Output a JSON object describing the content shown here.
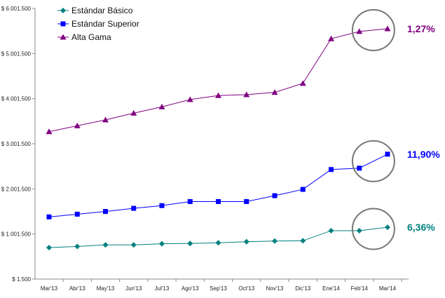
{
  "chart_data": {
    "type": "line",
    "title": "",
    "xlabel": "",
    "ylabel": "",
    "categories": [
      "Mar'13",
      "Abr'13",
      "May'13",
      "Jun'13",
      "Jul'13",
      "Ago'13",
      "Sep'13",
      "Oct'13",
      "Nov'13",
      "Dic'13",
      "Ene'14",
      "Feb'14",
      "Mar'14"
    ],
    "y_ticks": [
      "$ 1.500",
      "$ 1.001.500",
      "$ 2.001.500",
      "$ 3.001.500",
      "$ 4.001.500",
      "$ 5.001.500",
      "$ 6.001.500"
    ],
    "ylim": [
      1500,
      6001500
    ],
    "grid": false,
    "legend_position": "top-left",
    "series": [
      {
        "name": "Estándar Básico",
        "color": "#008080",
        "marker": "diamond",
        "values": [
          700000,
          725000,
          760000,
          760000,
          785000,
          790000,
          805000,
          830000,
          845000,
          850000,
          1075000,
          1075000,
          1150000
        ],
        "end_label": "6,36%",
        "end_label_color": "#008080"
      },
      {
        "name": "Estándar Superior",
        "color": "#0000FF",
        "marker": "square",
        "values": [
          1380000,
          1440000,
          1500000,
          1570000,
          1630000,
          1720000,
          1720000,
          1720000,
          1850000,
          1990000,
          2430000,
          2460000,
          2770000
        ],
        "end_label": "11,90%",
        "end_label_color": "#0000FF"
      },
      {
        "name": "Alta Gama",
        "color": "#800080",
        "marker": "triangle",
        "values": [
          3270000,
          3400000,
          3530000,
          3680000,
          3820000,
          3980000,
          4070000,
          4090000,
          4140000,
          4340000,
          5330000,
          5490000,
          5550000
        ],
        "end_label": "1,27%",
        "end_label_color": "#800080"
      }
    ],
    "annotations": [
      {
        "type": "ellipse",
        "series": "Estándar Básico",
        "around_categories": [
          "Feb'14",
          "Mar'14"
        ]
      },
      {
        "type": "ellipse",
        "series": "Estándar Superior",
        "around_categories": [
          "Feb'14",
          "Mar'14"
        ]
      },
      {
        "type": "ellipse",
        "series": "Alta Gama",
        "around_categories": [
          "Feb'14",
          "Mar'14"
        ]
      }
    ]
  }
}
